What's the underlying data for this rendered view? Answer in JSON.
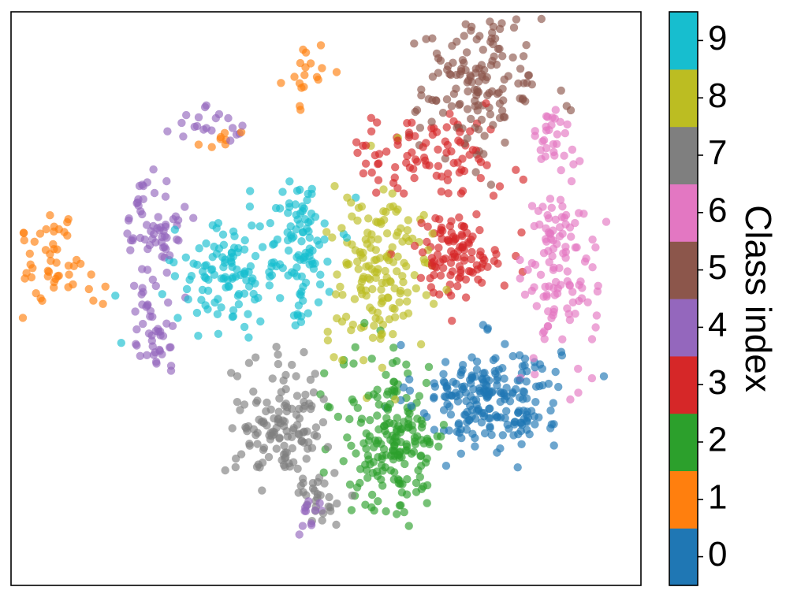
{
  "chart_data": {
    "type": "scatter",
    "title": "",
    "xlabel": "",
    "ylabel": "",
    "xticks": [],
    "yticks": [],
    "grid": false,
    "xlim": [
      -70,
      70
    ],
    "ylim": [
      -70,
      70
    ],
    "marker_alpha": 0.65,
    "colorbar": {
      "label": "Class index",
      "ticks": [
        "0",
        "1",
        "2",
        "3",
        "4",
        "5",
        "6",
        "7",
        "8",
        "9"
      ],
      "placement": "right"
    },
    "series": [
      {
        "class": "0",
        "color": "#1f77b4",
        "clusters": [
          {
            "center": [
              36,
              -24
            ],
            "spread": [
              8,
              6.5
            ],
            "count": 220
          }
        ]
      },
      {
        "class": "1",
        "color": "#ff7f0e",
        "clusters": [
          {
            "center": [
              -60,
              9
            ],
            "spread": [
              5,
              6
            ],
            "count": 55
          },
          {
            "center": [
              -4,
              54
            ],
            "spread": [
              2.5,
              4
            ],
            "count": 18
          },
          {
            "center": [
              -24,
              39
            ],
            "spread": [
              2.5,
              1.5
            ],
            "count": 8
          }
        ]
      },
      {
        "class": "2",
        "color": "#2ca02c",
        "clusters": [
          {
            "center": [
              15,
              -34
            ],
            "spread": [
              6,
              10
            ],
            "count": 200
          }
        ]
      },
      {
        "class": "3",
        "color": "#d62728",
        "clusters": [
          {
            "center": [
              29,
              11
            ],
            "spread": [
              5,
              5
            ],
            "count": 110
          },
          {
            "center": [
              23,
              35
            ],
            "spread": [
              9,
              5
            ],
            "count": 90
          }
        ]
      },
      {
        "class": "4",
        "color": "#9467bd",
        "clusters": [
          {
            "center": [
              -38,
              18
            ],
            "spread": [
              3,
              6
            ],
            "count": 60
          },
          {
            "center": [
              -38,
              -6
            ],
            "spread": [
              3,
              6
            ],
            "count": 45
          },
          {
            "center": [
              -26,
              42
            ],
            "spread": [
              4,
              2
            ],
            "count": 20
          },
          {
            "center": [
              -4,
              -52
            ],
            "spread": [
              2,
              2
            ],
            "count": 12
          }
        ]
      },
      {
        "class": "5",
        "color": "#8c564b",
        "clusters": [
          {
            "center": [
              34,
              52
            ],
            "spread": [
              7,
              9
            ],
            "count": 150
          }
        ]
      },
      {
        "class": "6",
        "color": "#e377c2",
        "clusters": [
          {
            "center": [
              52,
              8
            ],
            "spread": [
              4,
              12
            ],
            "count": 120
          },
          {
            "center": [
              50,
              38
            ],
            "spread": [
              2,
              6
            ],
            "count": 25
          }
        ]
      },
      {
        "class": "7",
        "color": "#7f7f7f",
        "clusters": [
          {
            "center": [
              -10,
              -30
            ],
            "spread": [
              5,
              7
            ],
            "count": 130
          },
          {
            "center": [
              -2,
              -48
            ],
            "spread": [
              3,
              4
            ],
            "count": 30
          }
        ]
      },
      {
        "class": "8",
        "color": "#bcbd22",
        "clusters": [
          {
            "center": [
              12,
              6
            ],
            "spread": [
              6,
              10
            ],
            "count": 160
          }
        ]
      },
      {
        "class": "9",
        "color": "#17becf",
        "clusters": [
          {
            "center": [
              -22,
              6
            ],
            "spread": [
              6,
              6
            ],
            "count": 110
          },
          {
            "center": [
              -6,
              12
            ],
            "spread": [
              4,
              9
            ],
            "count": 100
          }
        ]
      }
    ]
  }
}
